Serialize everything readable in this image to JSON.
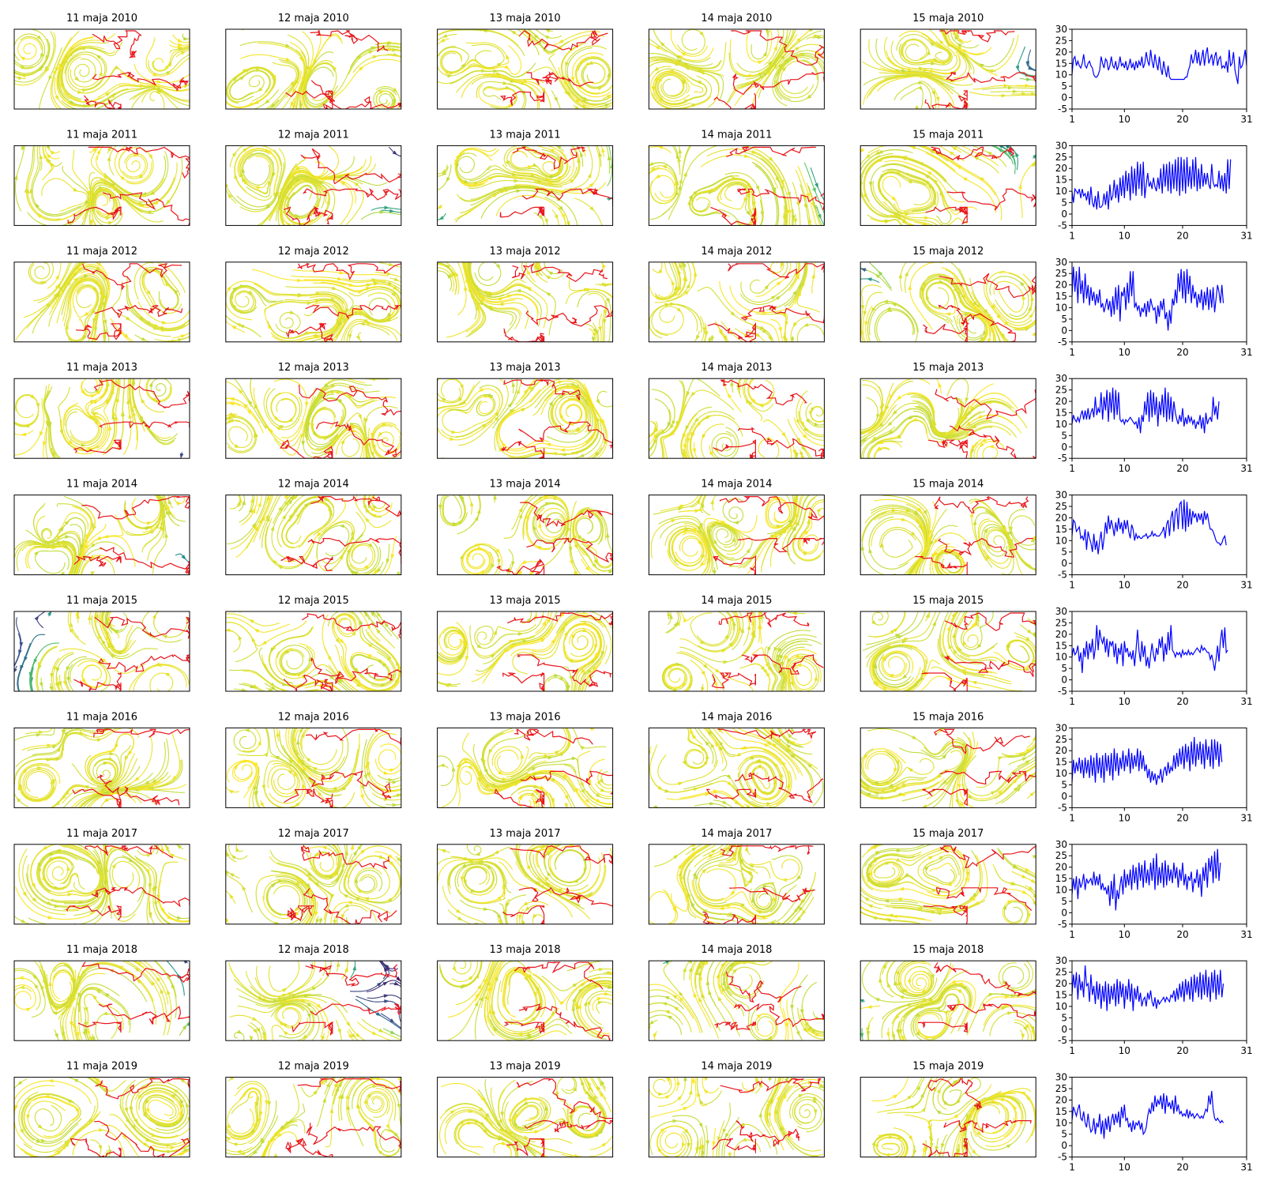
{
  "figure": {
    "map_title_template": "{day} maja {year}",
    "days": [
      11,
      12,
      13,
      14,
      15
    ],
    "years": [
      2010,
      2011,
      2012,
      2013,
      2014,
      2015,
      2016,
      2017,
      2018,
      2019
    ]
  },
  "colors": {
    "series_line": "#0000ff",
    "coastline": "#e8141b",
    "streamline_scale": [
      "#440154",
      "#3b528b",
      "#21918c",
      "#5ec962",
      "#fde725"
    ],
    "frame": "#000000"
  },
  "chart_data": {
    "type": "line",
    "x_ticks": [
      1,
      10,
      20,
      31
    ],
    "y_ticks": [
      30,
      25,
      20,
      15,
      10,
      5,
      0,
      -5
    ],
    "xlim": [
      1,
      31
    ],
    "ylim": [
      -5,
      30
    ],
    "grid": false,
    "x_step_days": 0.25,
    "series": [
      {
        "year": 2010,
        "values": [
          10,
          17,
          18,
          14,
          16,
          14,
          13,
          15,
          19,
          14,
          13,
          15,
          16,
          14,
          13,
          10,
          9,
          9,
          10,
          12,
          18,
          15,
          13,
          17,
          16,
          12,
          14,
          18,
          14,
          13,
          16,
          12,
          14,
          18,
          14,
          15,
          13,
          16,
          12,
          14,
          17,
          13,
          15,
          12,
          16,
          13,
          16,
          14,
          18,
          13,
          15,
          20,
          16,
          14,
          21,
          16,
          13,
          19,
          15,
          12,
          18,
          13,
          10,
          16,
          12,
          9,
          14,
          9,
          8,
          8,
          8,
          8,
          8,
          8,
          8,
          8,
          8,
          8,
          9,
          9,
          12,
          14,
          19,
          15,
          17,
          21,
          15,
          20,
          14,
          17,
          21,
          14,
          19,
          22,
          15,
          17,
          19,
          14,
          18,
          20,
          14,
          17,
          18,
          13,
          14,
          13,
          16,
          11,
          21,
          14,
          15,
          20,
          12,
          9,
          6,
          18,
          13,
          14,
          17,
          21,
          14,
          13,
          16,
          10,
          15,
          22,
          14
        ]
      },
      {
        "year": 2011,
        "values": [
          10,
          5,
          11,
          10,
          9,
          11,
          7,
          11,
          8,
          9,
          6,
          10,
          4,
          12,
          5,
          3,
          8,
          2,
          10,
          3,
          3,
          4,
          9,
          4,
          10,
          2,
          13,
          6,
          8,
          15,
          7,
          13,
          5,
          16,
          8,
          17,
          7,
          19,
          10,
          18,
          6,
          21,
          9,
          20,
          8,
          23,
          11,
          22,
          8,
          23,
          7,
          13,
          18,
          12,
          14,
          11,
          16,
          12,
          10,
          16,
          11,
          20,
          9,
          22,
          12,
          22,
          10,
          23,
          9,
          22,
          11,
          24,
          10,
          25,
          8,
          25,
          10,
          24,
          9,
          25,
          12,
          21,
          11,
          24,
          12,
          25,
          10,
          20,
          11,
          22,
          12,
          18,
          13,
          18,
          13,
          11,
          22,
          14,
          12,
          13,
          12,
          19,
          11,
          17,
          10,
          18,
          9,
          24,
          11,
          24
        ]
      },
      {
        "year": 2012,
        "values": [
          15,
          28,
          17,
          26,
          12,
          28,
          16,
          22,
          12,
          25,
          14,
          20,
          11,
          19,
          13,
          17,
          11,
          16,
          12,
          18,
          10,
          12,
          8,
          11,
          14,
          9,
          13,
          6,
          15,
          7,
          19,
          9,
          20,
          4,
          17,
          15,
          19,
          9,
          21,
          12,
          26,
          15,
          26,
          10,
          12,
          9,
          11,
          6,
          10,
          8,
          12,
          6,
          13,
          8,
          14,
          11,
          9,
          10,
          3,
          11,
          6,
          13,
          9,
          14,
          5,
          8,
          0,
          9,
          3,
          14,
          11,
          18,
          12,
          25,
          17,
          27,
          14,
          26,
          12,
          27,
          16,
          24,
          12,
          20,
          14,
          17,
          10,
          16,
          12,
          18,
          9,
          17,
          11,
          19,
          9,
          18,
          10,
          19,
          8,
          14,
          20,
          17,
          12,
          20,
          12
        ]
      },
      {
        "year": 2013,
        "values": [
          10,
          14,
          12,
          11,
          13,
          11,
          14,
          16,
          12,
          16,
          12,
          17,
          12,
          15,
          17,
          13,
          22,
          14,
          17,
          15,
          24,
          12,
          22,
          16,
          25,
          11,
          24,
          15,
          26,
          12,
          25,
          14,
          24,
          12,
          11,
          12,
          10,
          12,
          11,
          12,
          13,
          12,
          11,
          10,
          11,
          8,
          13,
          6,
          14,
          11,
          20,
          14,
          24,
          11,
          25,
          13,
          24,
          14,
          22,
          9,
          20,
          14,
          23,
          13,
          26,
          11,
          24,
          12,
          22,
          11,
          20,
          15,
          12,
          10,
          14,
          11,
          17,
          9,
          13,
          10,
          14,
          11,
          13,
          10,
          12,
          8,
          11,
          10,
          14,
          8,
          13,
          6,
          15,
          10,
          12,
          13,
          11,
          22,
          14,
          18,
          12,
          20
        ]
      },
      {
        "year": 2014,
        "values": [
          12,
          19,
          18,
          14,
          15,
          16,
          11,
          12,
          10,
          15,
          6,
          14,
          11,
          9,
          5,
          13,
          6,
          10,
          4,
          10,
          14,
          6,
          11,
          18,
          13,
          21,
          15,
          19,
          16,
          12,
          18,
          14,
          20,
          15,
          18,
          13,
          19,
          15,
          19,
          14,
          11,
          17,
          15,
          10,
          13,
          11,
          12,
          11,
          11,
          12,
          12,
          13,
          11,
          12,
          12,
          14,
          12,
          13,
          12,
          12,
          12,
          13,
          14,
          16,
          11,
          17,
          19,
          12,
          20,
          23,
          14,
          23,
          24,
          15,
          26,
          27,
          15,
          28,
          14,
          27,
          16,
          24,
          17,
          23,
          20,
          22,
          18,
          22,
          19,
          22,
          17,
          23,
          19,
          22,
          18,
          15,
          15,
          14,
          12,
          10,
          9,
          9,
          8,
          9,
          11,
          12,
          8
        ]
      },
      {
        "year": 2015,
        "values": [
          10,
          14,
          11,
          12,
          15,
          8,
          12,
          3,
          14,
          10,
          17,
          9,
          16,
          12,
          18,
          9,
          14,
          24,
          13,
          22,
          18,
          16,
          19,
          12,
          18,
          10,
          17,
          15,
          17,
          10,
          16,
          7,
          14,
          11,
          16,
          6,
          17,
          12,
          14,
          10,
          12,
          9,
          13,
          6,
          13,
          22,
          13,
          8,
          17,
          10,
          15,
          6,
          10,
          5,
          11,
          16,
          11,
          8,
          14,
          11,
          18,
          14,
          19,
          8,
          16,
          11,
          21,
          13,
          24,
          13,
          12,
          10,
          12,
          11,
          12,
          10,
          13,
          11,
          12,
          11,
          13,
          11,
          12,
          11,
          12,
          13,
          14,
          13,
          12,
          15,
          13,
          14,
          13,
          12,
          12,
          9,
          11,
          8,
          4,
          9,
          15,
          8,
          17,
          22,
          14,
          23,
          12,
          13
        ]
      },
      {
        "year": 2016,
        "values": [
          6,
          16,
          10,
          15,
          11,
          17,
          10,
          16,
          8,
          17,
          10,
          16,
          8,
          18,
          9,
          17,
          6,
          19,
          10,
          17,
          8,
          18,
          6,
          19,
          11,
          18,
          9,
          19,
          7,
          21,
          11,
          19,
          9,
          17,
          12,
          20,
          11,
          18,
          13,
          21,
          10,
          19,
          12,
          18,
          13,
          21,
          11,
          20,
          12,
          18,
          11,
          14,
          8,
          12,
          6,
          11,
          7,
          10,
          5,
          9,
          8,
          12,
          6,
          11,
          13,
          9,
          15,
          10,
          13,
          11,
          18,
          12,
          19,
          13,
          21,
          14,
          22,
          12,
          23,
          15,
          22,
          11,
          24,
          14,
          26,
          13,
          23,
          16,
          24,
          14,
          23,
          12,
          25,
          16,
          22,
          13,
          25,
          12,
          25,
          16,
          24,
          13,
          23,
          15
        ]
      },
      {
        "year": 2017,
        "values": [
          8,
          15,
          10,
          16,
          6,
          15,
          11,
          13,
          17,
          10,
          15,
          13,
          14,
          15,
          12,
          18,
          12,
          16,
          12,
          17,
          10,
          13,
          10,
          11,
          8,
          12,
          3,
          14,
          6,
          17,
          1,
          10,
          6,
          12,
          16,
          8,
          19,
          11,
          17,
          12,
          19,
          10,
          21,
          13,
          20,
          10,
          22,
          14,
          21,
          11,
          23,
          13,
          19,
          12,
          22,
          14,
          24,
          10,
          26,
          12,
          20,
          13,
          22,
          11,
          23,
          12,
          21,
          14,
          19,
          13,
          22,
          15,
          20,
          11,
          19,
          14,
          22,
          12,
          17,
          10,
          16,
          14,
          18,
          9,
          15,
          13,
          19,
          11,
          17,
          7,
          20,
          14,
          22,
          11,
          24,
          18,
          25,
          13,
          27,
          15,
          28,
          14,
          22
        ]
      },
      {
        "year": 2018,
        "values": [
          15,
          24,
          18,
          25,
          13,
          24,
          17,
          21,
          14,
          28,
          19,
          20,
          12,
          24,
          15,
          19,
          11,
          21,
          13,
          20,
          9,
          19,
          12,
          21,
          8,
          20,
          11,
          19,
          13,
          20,
          10,
          22,
          11,
          21,
          14,
          20,
          9,
          19,
          13,
          22,
          12,
          20,
          8,
          18,
          13,
          19,
          12,
          16,
          10,
          13,
          14,
          10,
          16,
          13,
          17,
          12,
          10,
          14,
          9,
          13,
          11,
          12,
          13,
          14,
          12,
          14,
          13,
          12,
          15,
          14,
          17,
          12,
          18,
          13,
          20,
          14,
          21,
          12,
          22,
          15,
          21,
          13,
          23,
          12,
          24,
          16,
          23,
          14,
          25,
          13,
          24,
          15,
          26,
          14,
          23,
          12,
          25,
          16,
          26,
          13,
          24,
          15,
          26,
          14,
          20
        ]
      },
      {
        "year": 2019,
        "values": [
          11,
          17,
          15,
          13,
          16,
          18,
          12,
          11,
          15,
          10,
          8,
          14,
          9,
          6,
          7,
          12,
          5,
          10,
          8,
          14,
          5,
          11,
          3,
          12,
          7,
          13,
          6,
          11,
          14,
          9,
          14,
          10,
          15,
          8,
          17,
          12,
          18,
          11,
          12,
          8,
          10,
          6,
          11,
          7,
          10,
          9,
          11,
          7,
          10,
          5,
          6,
          8,
          13,
          16,
          14,
          19,
          15,
          22,
          17,
          20,
          18,
          22,
          16,
          23,
          14,
          22,
          17,
          19,
          16,
          20,
          14,
          22,
          15,
          18,
          14,
          15,
          13,
          14,
          13,
          16,
          12,
          15,
          13,
          14,
          12,
          13,
          14,
          13,
          12,
          13,
          12,
          14,
          16,
          15,
          22,
          18,
          24,
          16,
          12,
          11,
          12,
          11,
          10,
          11,
          10
        ]
      }
    ]
  }
}
